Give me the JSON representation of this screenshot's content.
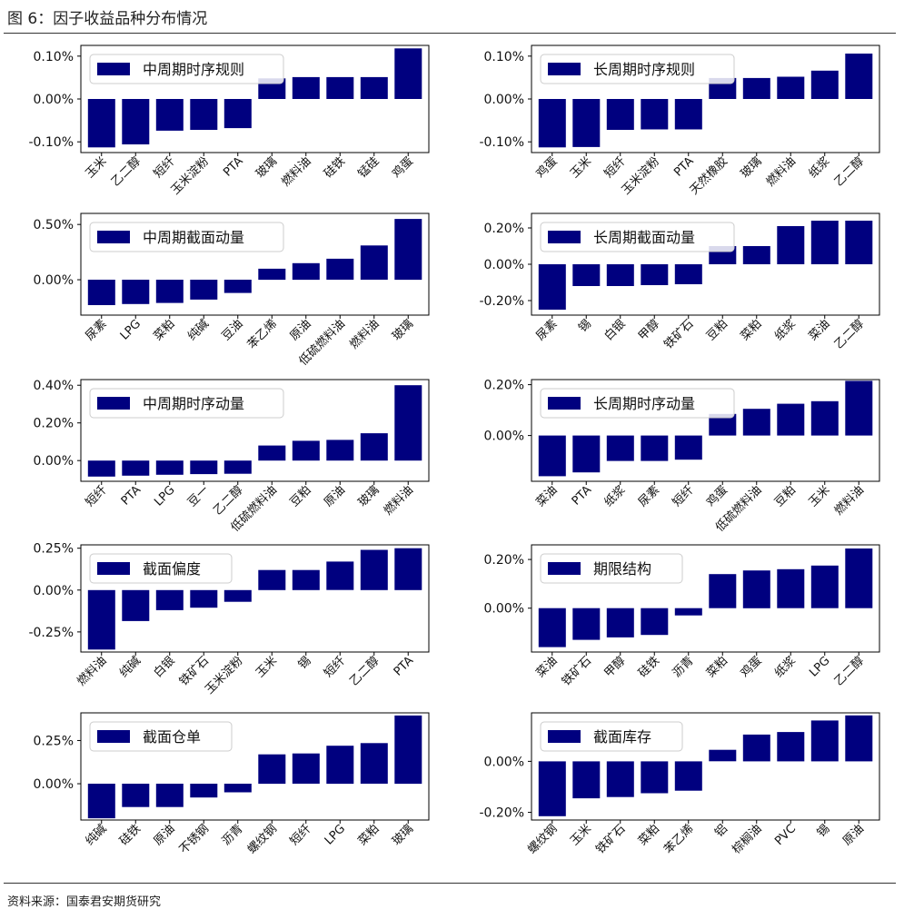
{
  "title": "图 6：因子收益品种分布情况",
  "source": "资料来源：国泰君安期货研究",
  "colors": {
    "bar": "#00007f",
    "frame": "#000000",
    "legend_border": "#cccccc"
  },
  "chart_data": [
    {
      "type": "bar",
      "legend": "中周期时序规则",
      "categories": [
        "玉米",
        "乙二醇",
        "短纤",
        "玉米淀粉",
        "PTA",
        "玻璃",
        "燃料油",
        "硅铁",
        "锰硅",
        "鸡蛋"
      ],
      "values": [
        -0.113,
        -0.106,
        -0.074,
        -0.072,
        -0.068,
        0.048,
        0.051,
        0.051,
        0.051,
        0.118
      ],
      "ylim": [
        -0.125,
        0.125
      ],
      "yticks": [
        -0.1,
        0.0,
        0.1
      ],
      "ytick_labels": [
        "-0.10%",
        "0.00%",
        "0.10%"
      ]
    },
    {
      "type": "bar",
      "legend": "长周期时序规则",
      "categories": [
        "鸡蛋",
        "玉米",
        "短纤",
        "玉米淀粉",
        "PTA",
        "天然橡胶",
        "玻璃",
        "燃料油",
        "纸浆",
        "乙二醇"
      ],
      "values": [
        -0.113,
        -0.112,
        -0.072,
        -0.071,
        -0.071,
        0.049,
        0.049,
        0.052,
        0.066,
        0.106
      ],
      "ylim": [
        -0.125,
        0.125
      ],
      "yticks": [
        -0.1,
        0.0,
        0.1
      ],
      "ytick_labels": [
        "-0.10%",
        "0.00%",
        "0.10%"
      ]
    },
    {
      "type": "bar",
      "legend": "中周期截面动量",
      "categories": [
        "尿素",
        "LPG",
        "菜粕",
        "纯碱",
        "豆油",
        "苯乙烯",
        "原油",
        "低硫燃料油",
        "燃料油",
        "玻璃"
      ],
      "values": [
        -0.23,
        -0.22,
        -0.21,
        -0.18,
        -0.12,
        0.1,
        0.15,
        0.19,
        0.31,
        0.55
      ],
      "ylim": [
        -0.32,
        0.6
      ],
      "yticks": [
        0.0,
        0.5
      ],
      "ytick_labels": [
        "0.00%",
        "0.50%"
      ]
    },
    {
      "type": "bar",
      "legend": "长周期截面动量",
      "categories": [
        "尿素",
        "锡",
        "白银",
        "甲醇",
        "铁矿石",
        "豆粕",
        "菜粕",
        "纸浆",
        "菜油",
        "乙二醇"
      ],
      "values": [
        -0.25,
        -0.12,
        -0.12,
        -0.115,
        -0.11,
        0.1,
        0.1,
        0.21,
        0.24,
        0.24
      ],
      "ylim": [
        -0.28,
        0.28
      ],
      "yticks": [
        -0.2,
        0.0,
        0.2
      ],
      "ytick_labels": [
        "-0.20%",
        "0.00%",
        "0.20%"
      ]
    },
    {
      "type": "bar",
      "legend": "中周期时序动量",
      "categories": [
        "短纤",
        "PTA",
        "LPG",
        "豆一",
        "乙二醇",
        "低硫燃料油",
        "豆粕",
        "原油",
        "玻璃",
        "燃料油"
      ],
      "values": [
        -0.085,
        -0.08,
        -0.075,
        -0.072,
        -0.07,
        0.08,
        0.105,
        0.11,
        0.145,
        0.4
      ],
      "ylim": [
        -0.11,
        0.43
      ],
      "yticks": [
        0.0,
        0.2,
        0.4
      ],
      "ytick_labels": [
        "0.00%",
        "0.20%",
        "0.40%"
      ]
    },
    {
      "type": "bar",
      "legend": "长周期时序动量",
      "categories": [
        "菜油",
        "PTA",
        "纸浆",
        "尿素",
        "短纤",
        "鸡蛋",
        "低硫燃料油",
        "豆粕",
        "玉米",
        "燃料油"
      ],
      "values": [
        -0.16,
        -0.145,
        -0.1,
        -0.1,
        -0.095,
        0.085,
        0.105,
        0.125,
        0.135,
        0.215
      ],
      "ylim": [
        -0.18,
        0.22
      ],
      "yticks": [
        0.0,
        0.2
      ],
      "ytick_labels": [
        "0.00%",
        "0.20%"
      ]
    },
    {
      "type": "bar",
      "legend": "截面偏度",
      "categories": [
        "燃料油",
        "纯碱",
        "白银",
        "铁矿石",
        "玉米淀粉",
        "玉米",
        "锡",
        "短纤",
        "乙二醇",
        "PTA"
      ],
      "values": [
        -0.355,
        -0.185,
        -0.12,
        -0.105,
        -0.07,
        0.12,
        0.12,
        0.17,
        0.24,
        0.25
      ],
      "ylim": [
        -0.37,
        0.27
      ],
      "yticks": [
        -0.25,
        0.0,
        0.25
      ],
      "ytick_labels": [
        "-0.25%",
        "0.00%",
        "0.25%"
      ]
    },
    {
      "type": "bar",
      "legend": "期限结构",
      "categories": [
        "菜油",
        "铁矿石",
        "甲醇",
        "硅铁",
        "沥青",
        "菜粕",
        "鸡蛋",
        "纸浆",
        "LPG",
        "乙二醇"
      ],
      "values": [
        -0.16,
        -0.13,
        -0.12,
        -0.11,
        -0.03,
        0.14,
        0.155,
        0.16,
        0.175,
        0.245
      ],
      "ylim": [
        -0.18,
        0.26
      ],
      "yticks": [
        0.0,
        0.2
      ],
      "ytick_labels": [
        "0.00%",
        "0.20%"
      ]
    },
    {
      "type": "bar",
      "legend": "截面仓单",
      "categories": [
        "纯碱",
        "硅铁",
        "原油",
        "不锈钢",
        "沥青",
        "螺纹钢",
        "短纤",
        "LPG",
        "菜粕",
        "玻璃"
      ],
      "values": [
        -0.2,
        -0.135,
        -0.135,
        -0.08,
        -0.05,
        0.17,
        0.175,
        0.22,
        0.235,
        0.395
      ],
      "ylim": [
        -0.21,
        0.41
      ],
      "yticks": [
        0.0,
        0.25
      ],
      "ytick_labels": [
        "0.00%",
        "0.25%"
      ]
    },
    {
      "type": "bar",
      "legend": "截面库存",
      "categories": [
        "螺纹钢",
        "玉米",
        "铁矿石",
        "菜粕",
        "苯乙烯",
        "铝",
        "棕榈油",
        "PVC",
        "锡",
        "原油"
      ],
      "values": [
        -0.215,
        -0.145,
        -0.14,
        -0.125,
        -0.115,
        0.045,
        0.105,
        0.115,
        0.16,
        0.18
      ],
      "ylim": [
        -0.23,
        0.19
      ],
      "yticks": [
        -0.2,
        0.0
      ],
      "ytick_labels": [
        "-0.20%",
        "0.00%"
      ]
    }
  ]
}
